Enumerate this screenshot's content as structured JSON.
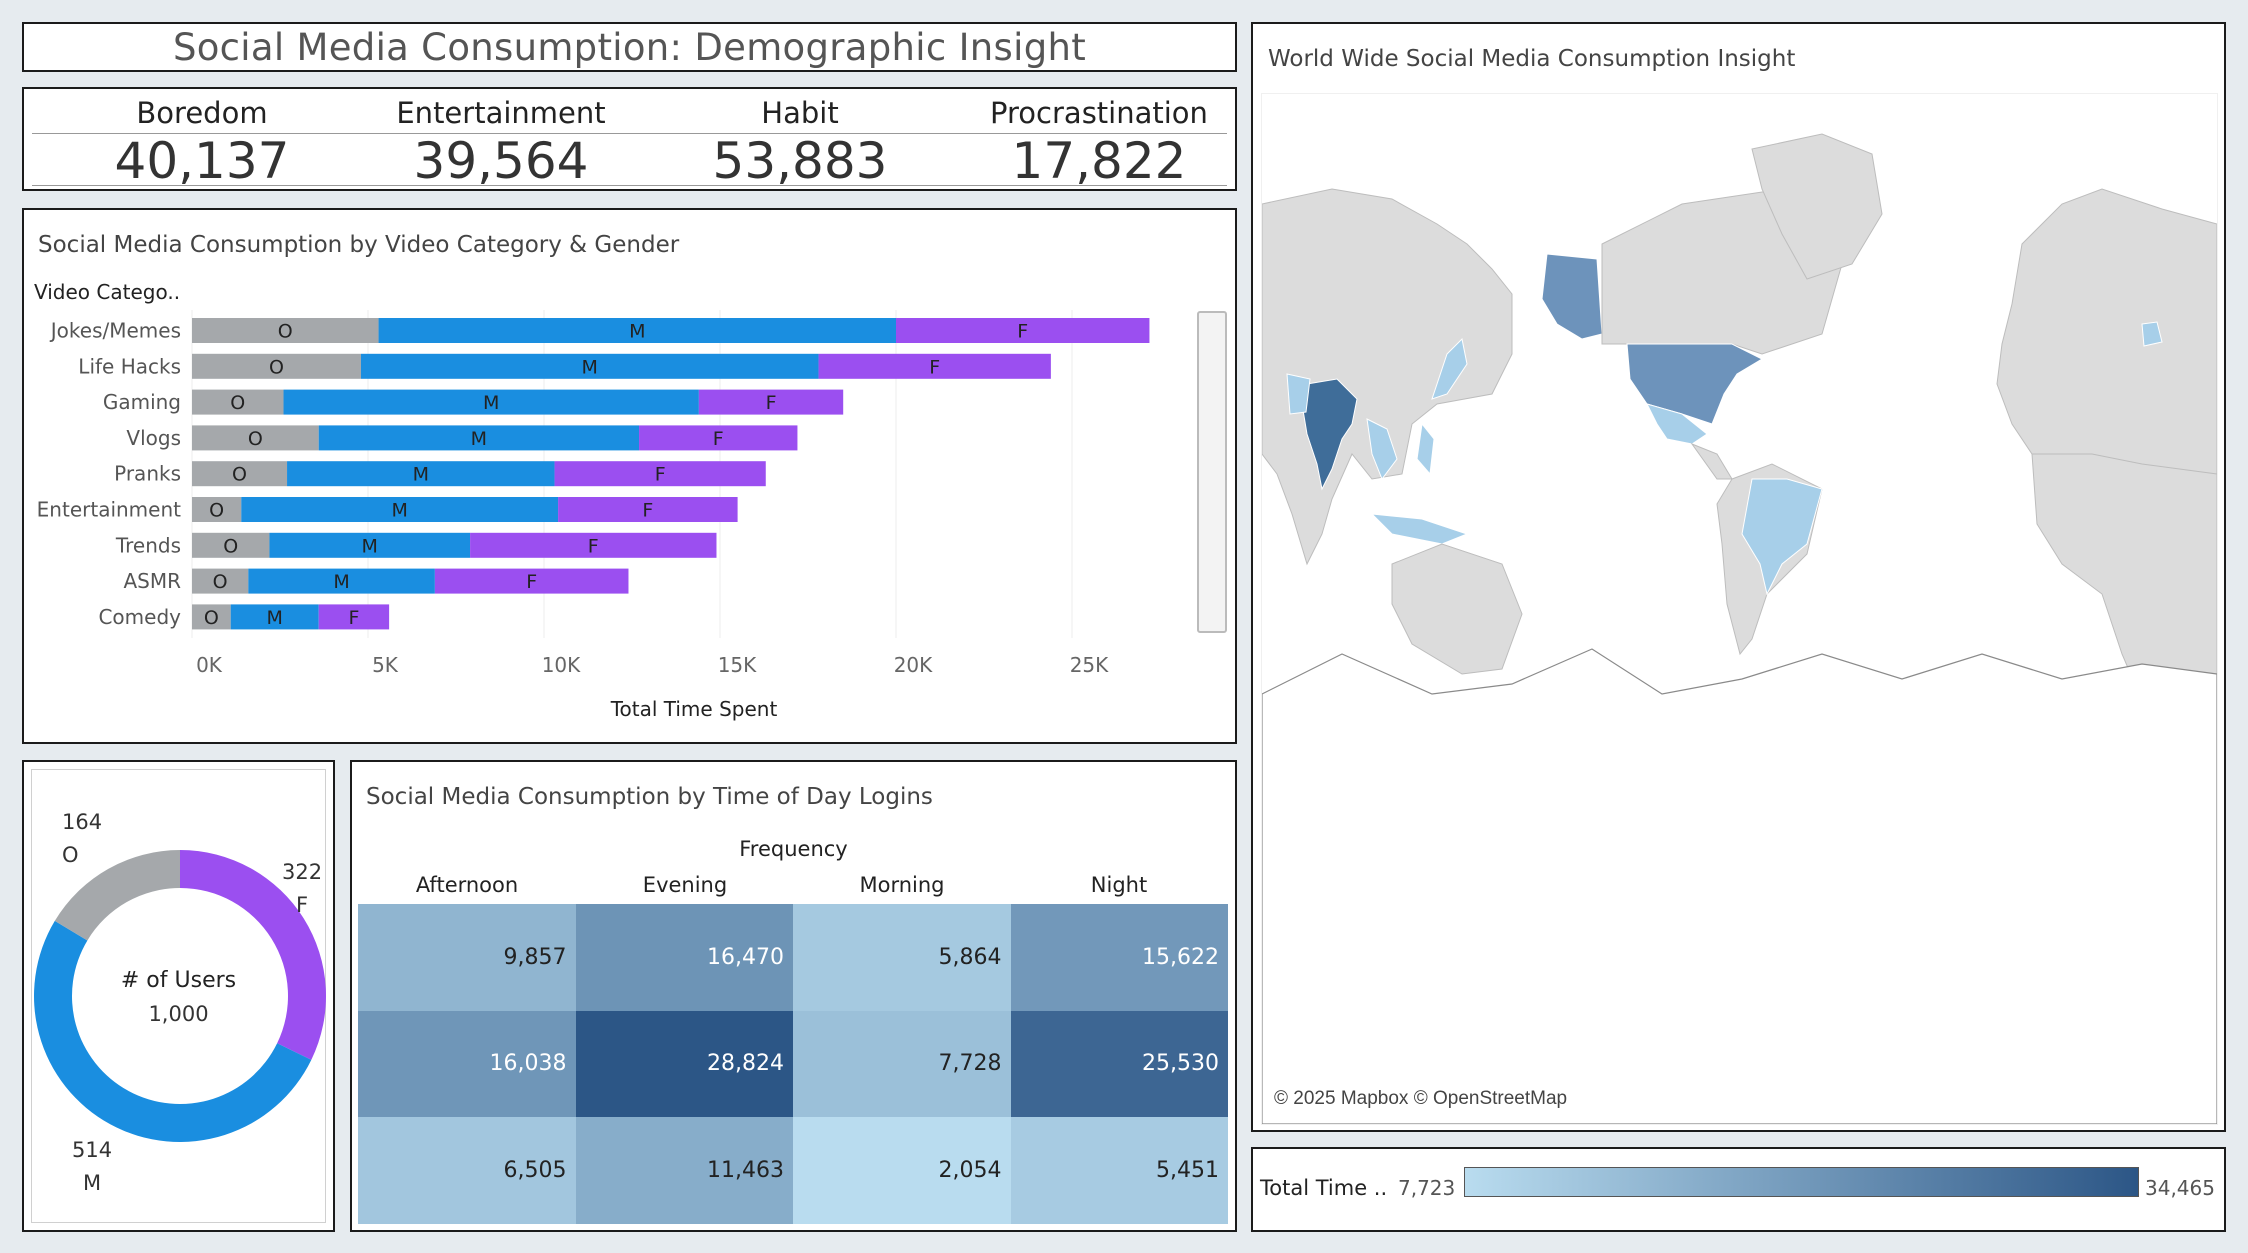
{
  "title": "Social Media Consumption: Demographic Insight",
  "kpis": [
    {
      "label": "Boredom",
      "value": "40,137"
    },
    {
      "label": "Entertainment",
      "value": "39,564"
    },
    {
      "label": "Habit",
      "value": "53,883"
    },
    {
      "label": "Procrastination",
      "value": "17,822"
    }
  ],
  "bar_chart": {
    "title": "Social Media Consumption by Video Category & Gender",
    "row_header": "Video Catego..",
    "xlabel": "Total Time Spent",
    "ticks": [
      "0K",
      "5K",
      "10K",
      "15K",
      "20K",
      "25K"
    ]
  },
  "donut": {
    "center_title": "# of Users",
    "center_value": "1,000",
    "labels": [
      {
        "count": "164",
        "gender": "O"
      },
      {
        "count": "322",
        "gender": "F"
      },
      {
        "count": "514",
        "gender": "M"
      }
    ]
  },
  "heatmap": {
    "title": "Social Media Consumption by Time of Day Logins",
    "header": "Frequency",
    "columns": [
      "Afternoon",
      "Evening",
      "Morning",
      "Night"
    ],
    "rows": [
      [
        "9,857",
        "16,470",
        "5,864",
        "15,622"
      ],
      [
        "16,038",
        "28,824",
        "7,728",
        "25,530"
      ],
      [
        "6,505",
        "11,463",
        "2,054",
        "5,451"
      ]
    ]
  },
  "map": {
    "title": "World Wide Social Media Consumption Insight",
    "attribution": "© 2025 Mapbox © OpenStreetMap"
  },
  "legend": {
    "label": "Total Time ..",
    "min": "7,723",
    "max": "34,465"
  },
  "colors": {
    "male": "#1a8ee0",
    "female": "#9b4ff0",
    "other": "#a5a8ab",
    "heat_low": "#b9dcef",
    "heat_high": "#2c5686"
  },
  "chart_data": [
    {
      "type": "bar",
      "orientation": "horizontal-stacked",
      "title": "Social Media Consumption by Video Category & Gender",
      "xlabel": "Total Time Spent",
      "ylabel": "Video Catego..",
      "categories": [
        "Jokes/Memes",
        "Life Hacks",
        "Gaming",
        "Vlogs",
        "Pranks",
        "Entertainment",
        "Trends",
        "ASMR",
        "Comedy"
      ],
      "series": [
        {
          "name": "O",
          "values": [
            5300,
            4800,
            2600,
            3600,
            2700,
            1400,
            2200,
            1600,
            1100
          ]
        },
        {
          "name": "M",
          "values": [
            14700,
            13000,
            11800,
            9100,
            7600,
            9000,
            5700,
            5300,
            2500
          ]
        },
        {
          "name": "F",
          "values": [
            7200,
            6600,
            4100,
            4500,
            6000,
            5100,
            7000,
            5500,
            2000
          ]
        }
      ],
      "xlim": [
        0,
        28000
      ]
    },
    {
      "type": "pie",
      "title": "# of Users",
      "categories": [
        "F",
        "M",
        "O"
      ],
      "values": [
        322,
        514,
        164
      ]
    },
    {
      "type": "heatmap",
      "title": "Social Media Consumption by Time of Day Logins",
      "columns": [
        "Afternoon",
        "Evening",
        "Morning",
        "Night"
      ],
      "values": [
        [
          9857,
          16470,
          5864,
          15622
        ],
        [
          16038,
          28824,
          7728,
          25530
        ],
        [
          6505,
          11463,
          2054,
          5451
        ]
      ]
    }
  ]
}
